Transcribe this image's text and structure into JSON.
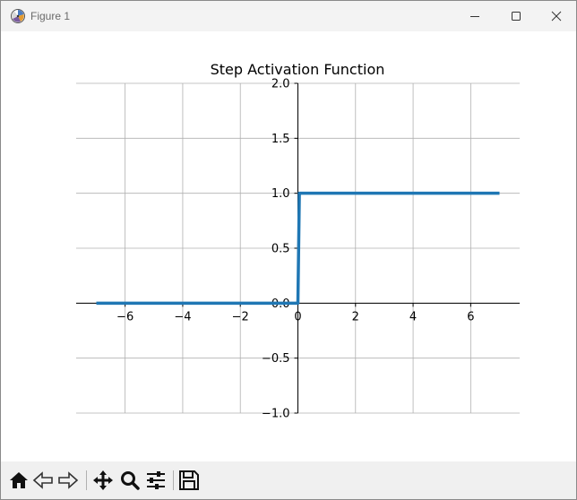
{
  "window": {
    "title": "Figure 1"
  },
  "icons": {
    "app": "matplotlib-app-icon",
    "minimize": "minimize-icon",
    "maximize": "maximize-icon",
    "close": "close-icon"
  },
  "toolbar": {
    "buttons": [
      "home-icon",
      "back-arrow-icon",
      "forward-arrow-icon",
      "pan-move-icon",
      "zoom-magnifier-icon",
      "configure-subplots-icon",
      "save-icon"
    ]
  },
  "chart_data": {
    "type": "line",
    "title": "Step Activation Function",
    "xlabel": "",
    "ylabel": "",
    "xlim": [
      -7.7,
      7.7
    ],
    "ylim": [
      -1.0,
      2.0
    ],
    "xticks": [
      -6,
      -4,
      -2,
      0,
      2,
      4,
      6
    ],
    "xtick_labels": [
      "−6",
      "−4",
      "−2",
      "0",
      "2",
      "4",
      "6"
    ],
    "yticks": [
      -1.0,
      -0.5,
      0.0,
      0.5,
      1.0,
      1.5,
      2.0
    ],
    "ytick_labels": [
      "−1.0",
      "−0.5",
      "0.0",
      "0.5",
      "1.0",
      "1.5",
      "2.0"
    ],
    "grid": true,
    "spines": "centered-at-origin",
    "series": [
      {
        "color": "#1f77b4",
        "x": [
          -7,
          -0.05,
          0,
          0.05,
          7
        ],
        "y": [
          0,
          0,
          0,
          1,
          1
        ]
      }
    ]
  }
}
